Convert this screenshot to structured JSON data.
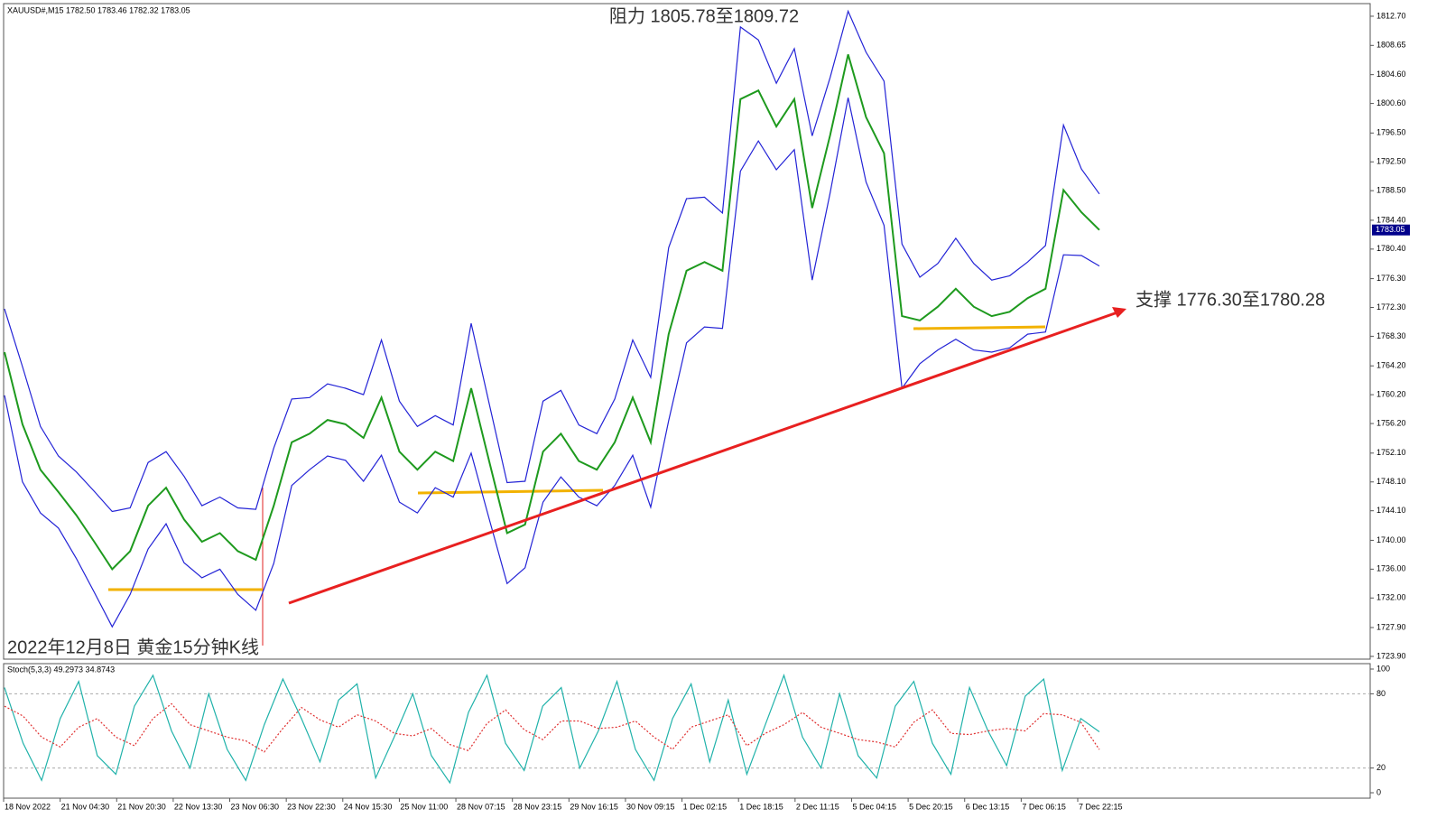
{
  "chart_data": [
    {
      "type": "line",
      "title": "XAUUSD#,M15  1782.50 1783.46 1782.32 1783.05",
      "annotations": [
        "阻力 1805.78至1809.72",
        "支撑 1776.30至1780.28",
        "2022年12月8日 黄金15分钟K线"
      ],
      "last_price": 1783.05,
      "ylim": [
        1723.52,
        1814.45
      ],
      "yticks": [
        {
          "value": 1812.7,
          "label": "1812.70"
        },
        {
          "value": 1808.65,
          "label": "1808.65"
        },
        {
          "value": 1804.6,
          "label": "1804.60"
        },
        {
          "value": 1800.6,
          "label": "1800.60"
        },
        {
          "value": 1796.5,
          "label": "1796.50"
        },
        {
          "value": 1792.5,
          "label": "1792.50"
        },
        {
          "value": 1788.5,
          "label": "1788.50"
        },
        {
          "value": 1784.4,
          "label": "1784.40"
        },
        {
          "value": 1780.4,
          "label": "1780.40"
        },
        {
          "value": 1776.3,
          "label": "1776.30"
        },
        {
          "value": 1772.3,
          "label": "1772.30"
        },
        {
          "value": 1768.3,
          "label": "1768.30"
        },
        {
          "value": 1764.2,
          "label": "1764.20"
        },
        {
          "value": 1760.2,
          "label": "1760.20"
        },
        {
          "value": 1756.2,
          "label": "1756.20"
        },
        {
          "value": 1752.1,
          "label": "1752.10"
        },
        {
          "value": 1748.1,
          "label": "1748.10"
        },
        {
          "value": 1744.1,
          "label": "1744.10"
        },
        {
          "value": 1740.0,
          "label": "1740.00"
        },
        {
          "value": 1736.0,
          "label": "1736.00"
        },
        {
          "value": 1732.0,
          "label": "1732.00"
        },
        {
          "value": 1727.9,
          "label": "1727.90"
        },
        {
          "value": 1723.9,
          "label": "1723.90"
        }
      ],
      "series": [
        {
          "color": "#1e9a1e",
          "values": [
            1766.1,
            1756.1,
            1749.8,
            1746.7,
            1743.5,
            1739.8,
            1736.0,
            1738.5,
            1744.8,
            1747.3,
            1742.9,
            1739.8,
            1741.0,
            1738.5,
            1737.3,
            1744.8,
            1753.6,
            1754.8,
            1756.7,
            1756.1,
            1754.2,
            1759.8,
            1752.3,
            1749.8,
            1752.3,
            1751.0,
            1761.1,
            1751.0,
            1741.0,
            1742.2,
            1752.3,
            1754.8,
            1751.0,
            1749.8,
            1753.6,
            1759.8,
            1753.6,
            1768.6,
            1777.4,
            1778.6,
            1777.4,
            1801.2,
            1802.4,
            1797.4,
            1801.2,
            1786.1,
            1796.2,
            1807.4,
            1798.7,
            1793.7,
            1771.1,
            1770.5,
            1772.4,
            1774.9,
            1772.4,
            1771.1,
            1771.7,
            1773.6,
            1774.9,
            1788.6,
            1785.5,
            1783.05
          ]
        },
        {
          "color": "#2323d6",
          "values": [
            1772.1,
            1764.1,
            1755.8,
            1751.7,
            1749.5,
            1746.8,
            1744.0,
            1744.5,
            1750.8,
            1752.3,
            1748.9,
            1744.8,
            1746.0,
            1744.5,
            1744.3,
            1752.8,
            1759.6,
            1759.8,
            1761.7,
            1761.1,
            1760.2,
            1767.8,
            1759.3,
            1755.8,
            1757.3,
            1756.0,
            1770.1,
            1759.0,
            1748.0,
            1748.2,
            1759.3,
            1760.8,
            1756.0,
            1754.8,
            1759.6,
            1767.8,
            1762.6,
            1780.6,
            1787.4,
            1787.6,
            1785.4,
            1811.2,
            1809.4,
            1803.4,
            1808.2,
            1796.1,
            1804.2,
            1813.4,
            1807.7,
            1803.7,
            1781.1,
            1776.5,
            1778.4,
            1781.9,
            1778.4,
            1776.1,
            1776.7,
            1778.6,
            1780.9,
            1797.6,
            1791.5,
            1788.05
          ]
        },
        {
          "color": "#2323d6",
          "values": [
            1760.1,
            1748.1,
            1743.8,
            1741.7,
            1737.5,
            1732.8,
            1728.0,
            1732.5,
            1738.8,
            1742.3,
            1736.9,
            1734.8,
            1736.0,
            1732.5,
            1730.3,
            1736.8,
            1747.6,
            1749.8,
            1751.7,
            1751.1,
            1748.2,
            1751.8,
            1745.3,
            1743.8,
            1747.3,
            1746.0,
            1752.1,
            1743.0,
            1734.0,
            1736.2,
            1745.3,
            1748.8,
            1746.0,
            1744.8,
            1747.6,
            1751.8,
            1744.6,
            1756.6,
            1767.4,
            1769.6,
            1769.4,
            1791.2,
            1795.4,
            1791.4,
            1794.2,
            1776.1,
            1788.2,
            1801.4,
            1789.7,
            1783.7,
            1761.1,
            1764.5,
            1766.4,
            1767.9,
            1766.4,
            1766.1,
            1766.7,
            1768.6,
            1768.9,
            1779.6,
            1779.5,
            1778.05
          ]
        }
      ]
    },
    {
      "type": "line",
      "title": "Stoch(5,3,3) 49.2973 34.8743",
      "ylim": [
        0,
        100
      ],
      "yticks": [
        0,
        20,
        80,
        100
      ],
      "x_labels": [
        "18 Nov 2022",
        "21 Nov 04:30",
        "21 Nov 20:30",
        "22 Nov 13:30",
        "23 Nov 06:30",
        "23 Nov 22:30",
        "24 Nov 15:30",
        "25 Nov 11:00",
        "28 Nov 07:15",
        "28 Nov 23:15",
        "29 Nov 16:15",
        "30 Nov 09:15",
        "1 Dec 02:15",
        "1 Dec 18:15",
        "2 Dec 11:15",
        "5 Dec 04:15",
        "5 Dec 20:15",
        "6 Dec 13:15",
        "7 Dec 06:15",
        "7 Dec 22:15"
      ],
      "series": [
        {
          "color": "#20b2aa",
          "style": "solid",
          "values": [
            85,
            40,
            10,
            60,
            90,
            30,
            15,
            70,
            95,
            50,
            20,
            80,
            35,
            10,
            55,
            92,
            60,
            25,
            75,
            88,
            12,
            45,
            80,
            30,
            8,
            65,
            95,
            40,
            18,
            70,
            85,
            20,
            50,
            90,
            35,
            10,
            60,
            88,
            25,
            75,
            15,
            55,
            95,
            45,
            20,
            80,
            30,
            12,
            70,
            90,
            40,
            15,
            85,
            50,
            22,
            78,
            92,
            18,
            60,
            49.2973
          ]
        },
        {
          "color": "#e03030",
          "style": "dashed",
          "values": [
            70,
            62,
            45,
            37,
            53,
            60,
            45,
            38,
            60,
            72,
            55,
            50,
            45,
            42,
            33,
            52,
            69,
            59,
            53,
            63,
            58,
            48,
            46,
            52,
            39,
            34,
            56,
            67,
            51,
            43,
            58,
            58,
            52,
            53,
            58,
            45,
            35,
            53,
            58,
            63,
            38,
            48,
            55,
            65,
            53,
            48,
            43,
            41,
            37,
            57,
            67,
            48,
            47,
            50,
            52,
            50,
            64,
            63,
            57,
            34.8743
          ]
        }
      ]
    }
  ]
}
